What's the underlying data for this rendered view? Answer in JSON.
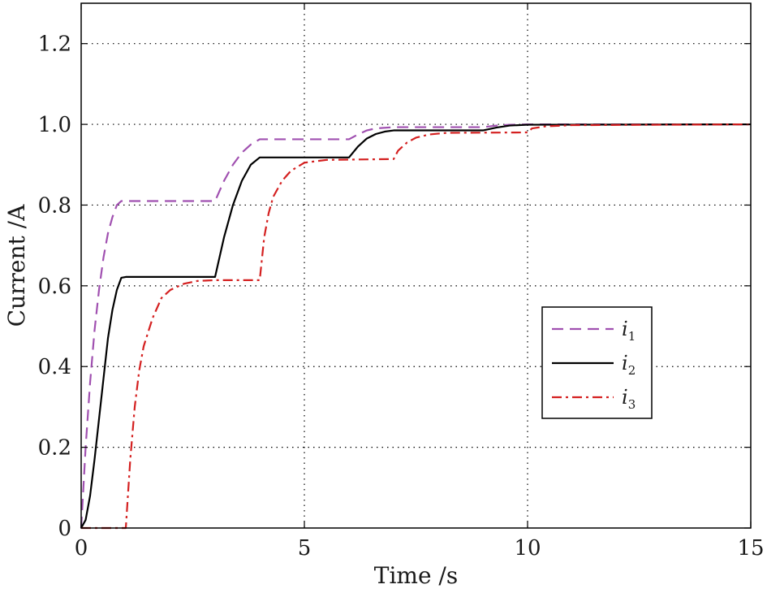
{
  "chart_data": {
    "type": "line",
    "title": "",
    "xlabel": "Time /s",
    "ylabel": "Current /A",
    "xlim": [
      0,
      15
    ],
    "ylim": [
      0,
      1.3
    ],
    "xticks": [
      0,
      5,
      10,
      15
    ],
    "yticks": [
      0,
      0.2,
      0.4,
      0.6,
      0.8,
      1.0,
      1.2
    ],
    "xtick_labels": [
      "0",
      "5",
      "10",
      "15"
    ],
    "ytick_labels": [
      "0",
      "0.2",
      "0.4",
      "0.6",
      "0.8",
      "1.0",
      "1.2"
    ],
    "grid": true,
    "legend_position": "center-right",
    "series": [
      {
        "name": "i",
        "subscript": "1",
        "color": "#a050b0",
        "dash": "dashed",
        "points": [
          [
            0,
            0
          ],
          [
            0.1,
            0.2
          ],
          [
            0.2,
            0.36
          ],
          [
            0.3,
            0.49
          ],
          [
            0.4,
            0.59
          ],
          [
            0.5,
            0.67
          ],
          [
            0.6,
            0.73
          ],
          [
            0.7,
            0.77
          ],
          [
            0.8,
            0.8
          ],
          [
            0.9,
            0.81
          ],
          [
            1,
            0.81
          ],
          [
            3,
            0.81
          ],
          [
            3.2,
            0.86
          ],
          [
            3.4,
            0.9
          ],
          [
            3.6,
            0.93
          ],
          [
            3.8,
            0.95
          ],
          [
            4,
            0.963
          ],
          [
            6,
            0.963
          ],
          [
            6.2,
            0.975
          ],
          [
            6.4,
            0.985
          ],
          [
            6.6,
            0.99
          ],
          [
            7,
            0.993
          ],
          [
            9,
            0.993
          ],
          [
            9.3,
            0.997
          ],
          [
            9.6,
            0.999
          ],
          [
            10,
            1.0
          ],
          [
            15,
            1.0
          ]
        ]
      },
      {
        "name": "i",
        "subscript": "2",
        "color": "#000000",
        "dash": "solid",
        "points": [
          [
            0,
            0
          ],
          [
            0.1,
            0.02
          ],
          [
            0.2,
            0.08
          ],
          [
            0.3,
            0.17
          ],
          [
            0.4,
            0.27
          ],
          [
            0.5,
            0.37
          ],
          [
            0.6,
            0.47
          ],
          [
            0.7,
            0.54
          ],
          [
            0.8,
            0.59
          ],
          [
            0.9,
            0.62
          ],
          [
            1,
            0.622
          ],
          [
            3,
            0.622
          ],
          [
            3.2,
            0.72
          ],
          [
            3.4,
            0.8
          ],
          [
            3.6,
            0.86
          ],
          [
            3.8,
            0.9
          ],
          [
            4,
            0.918
          ],
          [
            6,
            0.918
          ],
          [
            6.2,
            0.945
          ],
          [
            6.4,
            0.965
          ],
          [
            6.6,
            0.976
          ],
          [
            6.8,
            0.982
          ],
          [
            7,
            0.985
          ],
          [
            9,
            0.985
          ],
          [
            9.3,
            0.992
          ],
          [
            9.6,
            0.997
          ],
          [
            10,
            0.999
          ],
          [
            15,
            1.0
          ]
        ]
      },
      {
        "name": "i",
        "subscript": "3",
        "color": "#d42020",
        "dash": "dashdot",
        "points": [
          [
            0,
            0
          ],
          [
            1,
            0
          ],
          [
            1.1,
            0.17
          ],
          [
            1.2,
            0.3
          ],
          [
            1.3,
            0.39
          ],
          [
            1.4,
            0.45
          ],
          [
            1.6,
            0.52
          ],
          [
            1.8,
            0.57
          ],
          [
            2,
            0.59
          ],
          [
            2.3,
            0.605
          ],
          [
            2.6,
            0.612
          ],
          [
            3,
            0.614
          ],
          [
            4,
            0.614
          ],
          [
            4.1,
            0.72
          ],
          [
            4.2,
            0.78
          ],
          [
            4.3,
            0.82
          ],
          [
            4.5,
            0.86
          ],
          [
            4.7,
            0.885
          ],
          [
            5,
            0.905
          ],
          [
            5.5,
            0.912
          ],
          [
            7,
            0.914
          ],
          [
            7.1,
            0.935
          ],
          [
            7.3,
            0.955
          ],
          [
            7.5,
            0.967
          ],
          [
            7.8,
            0.975
          ],
          [
            8.2,
            0.979
          ],
          [
            10,
            0.98
          ],
          [
            10.1,
            0.99
          ],
          [
            10.4,
            0.995
          ],
          [
            11,
            0.998
          ],
          [
            15,
            1.0
          ]
        ]
      }
    ]
  }
}
